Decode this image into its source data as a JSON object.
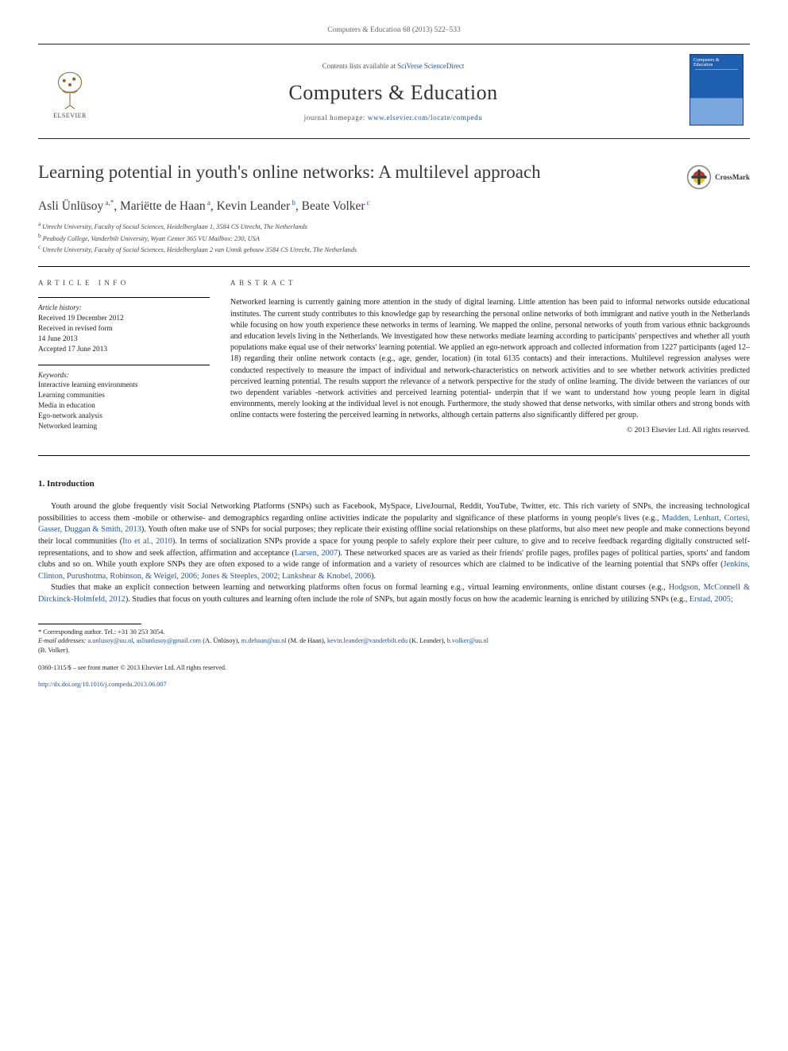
{
  "header": {
    "citation": "Computers & Education 68 (2013) 522–533",
    "contents_prefix": "Contents lists available at ",
    "contents_link": "SciVerse ScienceDirect",
    "journal_name": "Computers & Education",
    "homepage_prefix": "journal homepage: ",
    "homepage_url": "www.elsevier.com/locate/compedu",
    "publisher_logo_text": "ELSEVIER",
    "cover_title": "Computers & Education"
  },
  "colors": {
    "link": "#2156a5",
    "text": "#222222",
    "muted": "#666666",
    "cover_top": "#1f5fb0",
    "cover_bottom": "#7aa8de"
  },
  "article": {
    "title": "Learning potential in youth's online networks: A multilevel approach",
    "crossmark_label": "CrossMark",
    "authors_html": "Asli Ünlüsoy|a,*|, Mariëtte de Haan|a|, Kevin Leander|b|, Beate Volker|c|",
    "authors": [
      {
        "name": "Asli Ünlüsoy",
        "marks": "a,*"
      },
      {
        "name": "Mariëtte de Haan",
        "marks": "a"
      },
      {
        "name": "Kevin Leander",
        "marks": "b"
      },
      {
        "name": "Beate Volker",
        "marks": "c"
      }
    ],
    "affiliations": [
      {
        "mark": "a",
        "text": "Utrecht University, Faculty of Social Sciences, Heidelberglaan 1, 3584 CS Utrecht, The Netherlands"
      },
      {
        "mark": "b",
        "text": "Peabody College, Vanderbilt University, Wyatt Center 365 VU Mailbox: 230, USA"
      },
      {
        "mark": "c",
        "text": "Utrecht University, Faculty of Social Sciences, Heidelberglaan 2 van Unnik gebouw 3584 CS Utrecht, The Netherlands"
      }
    ]
  },
  "info": {
    "label": "ARTICLE INFO",
    "history_heading": "Article history:",
    "history": [
      "Received 19 December 2012",
      "Received in revised form",
      "14 June 2013",
      "Accepted 17 June 2013"
    ],
    "keywords_heading": "Keywords:",
    "keywords": [
      "Interactive learning environments",
      "Learning communities",
      "Media in education",
      "Ego-network analysis",
      "Networked learning"
    ]
  },
  "abstract": {
    "label": "ABSTRACT",
    "text": "Networked learning is currently gaining more attention in the study of digital learning. Little attention has been paid to informal networks outside educational institutes. The current study contributes to this knowledge gap by researching the personal online networks of both immigrant and native youth in the Netherlands while focusing on how youth experience these networks in terms of learning. We mapped the online, personal networks of youth from various ethnic backgrounds and education levels living in the Netherlands. We investigated how these networks mediate learning according to participants' perspectives and whether all youth populations make equal use of their networks' learning potential. We applied an ego-network approach and collected information from 1227 participants (aged 12–18) regarding their online network contacts (e.g., age, gender, location) (in total 6135 contacts) and their interactions. Multilevel regression analyses were conducted respectively to measure the impact of individual and network-characteristics on network activities and to see whether network activities predicted perceived learning potential. The results support the relevance of a network perspective for the study of online learning. The divide between the variances of our two dependent variables -network activities and perceived learning potential- underpin that if we want to understand how young people learn in digital environments, merely looking at the individual level is not enough. Furthermore, the study showed that dense networks, with similar others and strong bonds with online contacts were fostering the perceived learning in networks, although certain patterns also significantly differed per group.",
    "copyright": "© 2013 Elsevier Ltd. All rights reserved."
  },
  "body": {
    "section_heading": "1. Introduction",
    "para1_pre": "Youth around the globe frequently visit Social Networking Platforms (SNPs) such as Facebook, MySpace, LiveJournal, Reddit, YouTube, Twitter, etc. This rich variety of SNPs, the increasing technological possibilities to access them -mobile or otherwise- and demographics regarding online activities indicate the popularity and significance of these platforms in young people's lives (e.g., ",
    "cite1": "Madden, Lenhart, Cortesi, Gasser, Duggan & Smith, 2013",
    "para1_mid1": "). Youth often make use of SNPs for social purposes; they replicate their existing offline social relationships on these platforms, but also meet new people and make connections beyond their local communities (",
    "cite2": "Ito et al., 2010",
    "para1_mid2": "). In terms of socialization SNPs provide a space for young people to safely explore their peer culture, to give and to receive feedback regarding digitally constructed self-representations, and to show and seek affection, affirmation and acceptance (",
    "cite3": "Larsen, 2007",
    "para1_mid3": "). These networked spaces are as varied as their friends' profile pages, profiles pages of political parties, sports' and fandom clubs and so on. While youth explore SNPs they are often exposed to a wide range of information and a variety of resources which are claimed to be indicative of the learning potential that SNPs offer (",
    "cite4": "Jenkins, Clinton, Purushotma, Robinson, & Weigel, 2006; Jones & Steeples, 2002; Lankshear & Knobel, 2006",
    "para1_post": ").",
    "para2_pre": "Studies that make an explicit connection between learning and networking platforms often focus on formal learning e.g., virtual learning environments, online distant courses (e.g., ",
    "cite5": "Hodgson, McConnell & Dirckinck-Holmfeld, 2012",
    "para2_mid": "). Studies that focus on youth cultures and learning often include the role of SNPs, but again mostly focus on how the academic learning is enriched by utilizing SNPs (e.g., ",
    "cite6": "Erstad, 2005;",
    "para2_post": ""
  },
  "footnotes": {
    "corr_label": "* Corresponding author. Tel.: +31 30 253 3054.",
    "emails_label": "E-mail addresses: ",
    "emails": [
      {
        "addr": "a.unlusoy@uu.nl",
        "sep": ", "
      },
      {
        "addr": "asliunlusoy@gmail.com",
        "sep": " (A. Ünlüsoy), "
      },
      {
        "addr": "m.dehaan@uu.nl",
        "sep": " (M. de Haan), "
      },
      {
        "addr": "kevin.leander@vanderbilt.edu",
        "sep": " (K. Leander), "
      },
      {
        "addr": "b.volker@uu.nl",
        "sep": ""
      }
    ],
    "emails_tail": "(B. Volker)."
  },
  "bottom": {
    "line1": "0360-1315/$ – see front matter © 2013 Elsevier Ltd. All rights reserved.",
    "doi": "http://dx.doi.org/10.1016/j.compedu.2013.06.007"
  }
}
